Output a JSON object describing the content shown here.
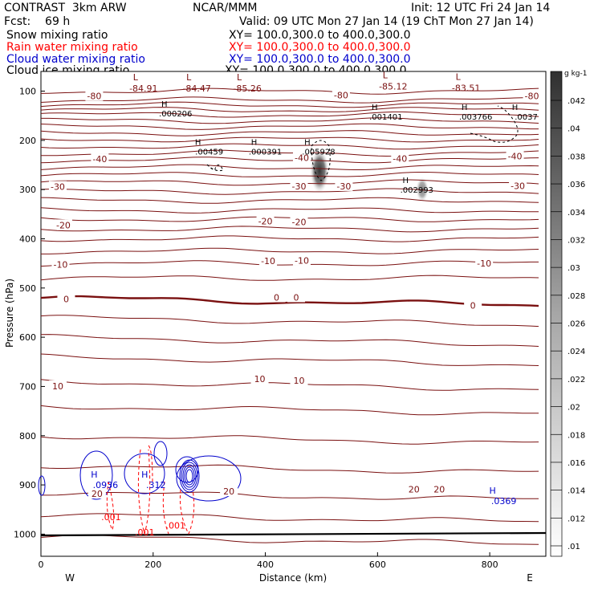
{
  "header": {
    "title": "CONTRAST  3km ARW",
    "center": "NCAR/MMM",
    "init": "Init: 12 UTC Fri 24 Jan 14",
    "fcst": "Fcst:    69 h",
    "valid": "Valid: 09 UTC Mon 27 Jan 14 (19 ChT Mon 27 Jan 14)",
    "fields": [
      {
        "label": "Snow mixing ratio",
        "xy": "XY= 100.0,300.0 to 400.0,300.0",
        "color": "#000000"
      },
      {
        "label": "Rain water mixing ratio",
        "xy": "XY= 100.0,300.0 to 400.0,300.0",
        "color": "#ff0000"
      },
      {
        "label": "Cloud water mixing ratio",
        "xy": "XY= 100.0,300.0 to 400.0,300.0",
        "color": "#0000cc"
      },
      {
        "label": "Cloud ice mixing ratio",
        "xy": "XY= 100.0,300.0 to 400.0,300.0",
        "color": "#000000"
      }
    ]
  },
  "chart_data": {
    "type": "cross-section contour",
    "xlabel": "Distance (km)",
    "ylabel": "Pressure (hPa)",
    "xlim": [
      0,
      900
    ],
    "ylim": [
      1045,
      60
    ],
    "x_ticks": [
      0,
      200,
      400,
      600,
      800
    ],
    "y_ticks": [
      100,
      200,
      300,
      400,
      500,
      600,
      700,
      800,
      900,
      1000
    ],
    "x_end_labels": {
      "left": "W",
      "right": "E"
    },
    "temperature_color": "#7a1010",
    "isotherm_labels": [
      {
        "value": "-80",
        "x": 95,
        "p": 110
      },
      {
        "value": "-80",
        "x": 535,
        "p": 108
      },
      {
        "value": "-80",
        "x": 875,
        "p": 110
      },
      {
        "value": "-40",
        "x": 105,
        "p": 238
      },
      {
        "value": "-40",
        "x": 465,
        "p": 235
      },
      {
        "value": "-40",
        "x": 845,
        "p": 232
      },
      {
        "value": "-40",
        "x": 640,
        "p": 237
      },
      {
        "value": "-30",
        "x": 30,
        "p": 294
      },
      {
        "value": "-30",
        "x": 460,
        "p": 293
      },
      {
        "value": "-30",
        "x": 540,
        "p": 293
      },
      {
        "value": "-30",
        "x": 850,
        "p": 292
      },
      {
        "value": "-20",
        "x": 40,
        "p": 372
      },
      {
        "value": "-20",
        "x": 400,
        "p": 364
      },
      {
        "value": "-20",
        "x": 460,
        "p": 366
      },
      {
        "value": "-10",
        "x": 35,
        "p": 452
      },
      {
        "value": "-10",
        "x": 405,
        "p": 445
      },
      {
        "value": "-10",
        "x": 465,
        "p": 444
      },
      {
        "value": "-10",
        "x": 790,
        "p": 450
      },
      {
        "value": "0",
        "x": 45,
        "p": 522
      },
      {
        "value": "0",
        "x": 420,
        "p": 519
      },
      {
        "value": "0",
        "x": 455,
        "p": 519
      },
      {
        "value": "0",
        "x": 770,
        "p": 535
      },
      {
        "value": "10",
        "x": 30,
        "p": 699
      },
      {
        "value": "10",
        "x": 390,
        "p": 685
      },
      {
        "value": "10",
        "x": 460,
        "p": 688
      },
      {
        "value": "20",
        "x": 100,
        "p": 918
      },
      {
        "value": "20",
        "x": 335,
        "p": 913
      },
      {
        "value": "20",
        "x": 665,
        "p": 909
      },
      {
        "value": "20",
        "x": 710,
        "p": 909
      }
    ],
    "temperature_minima": [
      {
        "label": "L",
        "value": "-84.91",
        "x": 180,
        "p": 78
      },
      {
        "label": "L",
        "value": "-84.47",
        "x": 275,
        "p": 78
      },
      {
        "label": "L",
        "value": "-85.26",
        "x": 365,
        "p": 78
      },
      {
        "label": "L",
        "value": "-85.12",
        "x": 625,
        "p": 74
      },
      {
        "label": "L",
        "value": "-83.51",
        "x": 755,
        "p": 77
      }
    ],
    "snow_maxima": [
      {
        "label": "H",
        "value": ".000206",
        "x": 240,
        "p": 132
      },
      {
        "label": "H",
        "value": ".001401",
        "x": 615,
        "p": 138
      },
      {
        "label": "H",
        "value": ".003766",
        "x": 775,
        "p": 138
      },
      {
        "label": "H",
        "value": ".0037",
        "x": 865,
        "p": 138
      },
      {
        "label": "H",
        "value": ".00459",
        "x": 300,
        "p": 209
      },
      {
        "label": "H",
        "value": ".000391",
        "x": 400,
        "p": 209
      },
      {
        "label": "H",
        "value": ".005928",
        "x": 495,
        "p": 209
      },
      {
        "label": "H",
        "value": ".002993",
        "x": 670,
        "p": 287
      }
    ],
    "cloud_water_maxima": [
      {
        "label": "H",
        "value": ".0936",
        "x": 115,
        "p": 885
      },
      {
        "label": "H",
        "value": ".312",
        "x": 205,
        "p": 885
      },
      {
        "label": "H",
        "value": ".0369",
        "x": 825,
        "p": 918
      }
    ],
    "rain_labels": [
      {
        "value": ".001",
        "x": 125,
        "p": 972
      },
      {
        "value": ".001",
        "x": 185,
        "p": 1003
      },
      {
        "value": ".001",
        "x": 240,
        "p": 989
      }
    ],
    "colorbar": {
      "unit": "g kg-1",
      "ticks": [
        ".042",
        ".04",
        ".038",
        ".036",
        ".034",
        ".032",
        ".03",
        ".028",
        ".026",
        ".024",
        ".022",
        ".02",
        ".018",
        ".016",
        ".014",
        ".012",
        ".01"
      ]
    }
  }
}
